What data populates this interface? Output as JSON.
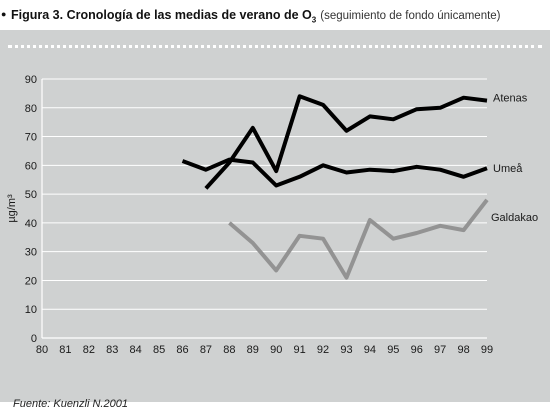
{
  "figure": {
    "title": "Figura 3. Cronología de las medias de verano de O",
    "title_sub": "3",
    "subtitle": "(seguimiento de fondo únicamente)",
    "source": "Fuente: Kuenzli N.2001"
  },
  "colors": {
    "panel": "#cfd1d1",
    "grid": "#ffffff",
    "atenas": "#000000",
    "umea": "#000000",
    "galdakao": "#939393"
  },
  "chart_data": {
    "type": "line",
    "title": "Cronología de las medias de verano de O3",
    "xlabel": "",
    "ylabel": "µg/m³",
    "x": [
      80,
      81,
      82,
      83,
      84,
      85,
      86,
      87,
      88,
      89,
      90,
      91,
      92,
      93,
      94,
      95,
      96,
      97,
      98,
      99
    ],
    "ylim": [
      0,
      90
    ],
    "yticks": [
      0,
      10,
      20,
      30,
      40,
      50,
      60,
      70,
      80,
      90
    ],
    "grid": "horizontal",
    "legend": "labels at right end of lines",
    "series": [
      {
        "name": "Atenas",
        "color": "#000000",
        "x": [
          87,
          88,
          89,
          90,
          91,
          92,
          93,
          94,
          95,
          96,
          97,
          98,
          99
        ],
        "values": [
          52,
          61,
          73,
          58,
          84,
          81,
          72,
          77,
          76,
          79.5,
          80,
          83.5,
          82.5
        ]
      },
      {
        "name": "Umeå",
        "color": "#000000",
        "x": [
          86,
          87,
          88,
          89,
          90,
          91,
          92,
          93,
          94,
          95,
          96,
          97,
          98,
          99
        ],
        "values": [
          61.5,
          58.5,
          62,
          61,
          53,
          56,
          60,
          57.5,
          58.5,
          58,
          59.5,
          58.5,
          56,
          59
        ]
      },
      {
        "name": "Galdakao",
        "color": "#939393",
        "x": [
          88,
          89,
          90,
          91,
          92,
          93,
          94,
          95,
          96,
          97,
          98,
          99
        ],
        "values": [
          40,
          33,
          23.5,
          35.5,
          34.5,
          21,
          41,
          34.5,
          36.5,
          39,
          37.5,
          48
        ]
      }
    ]
  }
}
